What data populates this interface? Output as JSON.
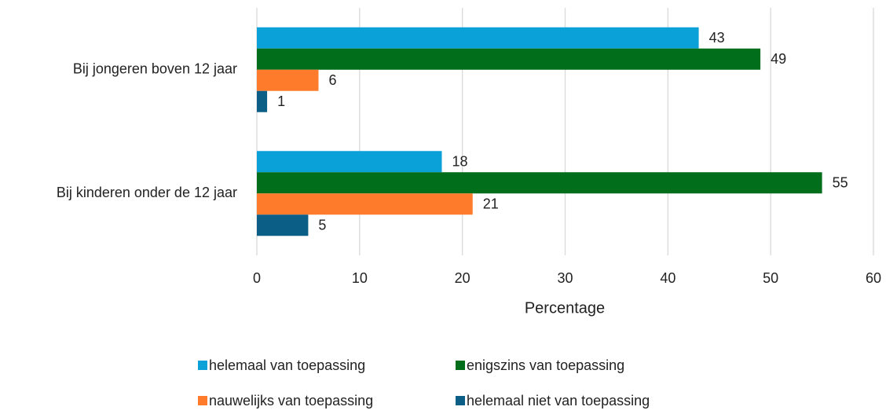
{
  "chart_data": {
    "type": "hbar",
    "categories": [
      "Bij jongeren boven 12 jaar",
      "Bij kinderen onder de 12 jaar"
    ],
    "series": [
      {
        "name": "helemaal van toepassing",
        "color": "#0aa0d8",
        "values": [
          43,
          18
        ]
      },
      {
        "name": "enigszins van toepassing",
        "color": "#006e1a",
        "values": [
          49,
          55
        ]
      },
      {
        "name": "nauwelijks van toepassing",
        "color": "#ff7b2c",
        "values": [
          6,
          21
        ]
      },
      {
        "name": "helemaal niet van toepassing",
        "color": "#0b5f86",
        "values": [
          1,
          5
        ]
      }
    ],
    "xlabel": "Percentage",
    "xlim": [
      0,
      60
    ],
    "xticks": [
      0,
      10,
      20,
      30,
      40,
      50,
      60
    ],
    "grid": true,
    "legend": "bottom"
  }
}
